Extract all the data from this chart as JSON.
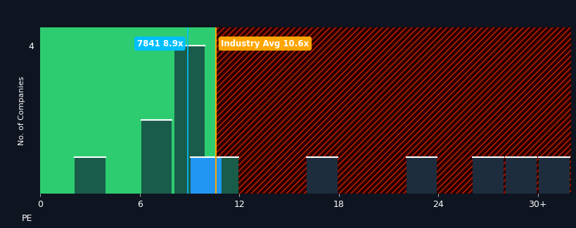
{
  "background_color": "#0e1420",
  "plot_bg_green": "#2ecc71",
  "bar_teal": "#1a5c4a",
  "bar_blue": "#2196F3",
  "bar_dark": "#1e2d3d",
  "company_pe": 8.9,
  "company_label": "7841 8.9x",
  "industry_avg": 10.6,
  "industry_label": "Industry Avg 10.6x",
  "company_line_color": "#00bfff",
  "industry_line_color": "#FFA500",
  "company_box_color": "#00bfff",
  "industry_box_color": "#FFA500",
  "hatch_fg": "#cc2200",
  "hatch_bg": "#2a0000",
  "bins_left": [
    2,
    6,
    8,
    10,
    16,
    22,
    26,
    28,
    30
  ],
  "bar_heights": [
    1,
    2,
    4,
    1,
    1,
    1,
    1,
    1,
    1
  ],
  "blue_bins": [
    9
  ],
  "blue_heights": [
    1
  ],
  "ytick_max": 4,
  "xlabel": "PE",
  "ylabel": "No. of Companies",
  "xtick_labels": [
    "0",
    "6",
    "12",
    "18",
    "24",
    "30+"
  ],
  "xtick_positions": [
    0,
    6,
    12,
    18,
    24,
    30
  ],
  "xmin": 0,
  "xmax": 32,
  "ymin": 0,
  "ymax": 4.5
}
